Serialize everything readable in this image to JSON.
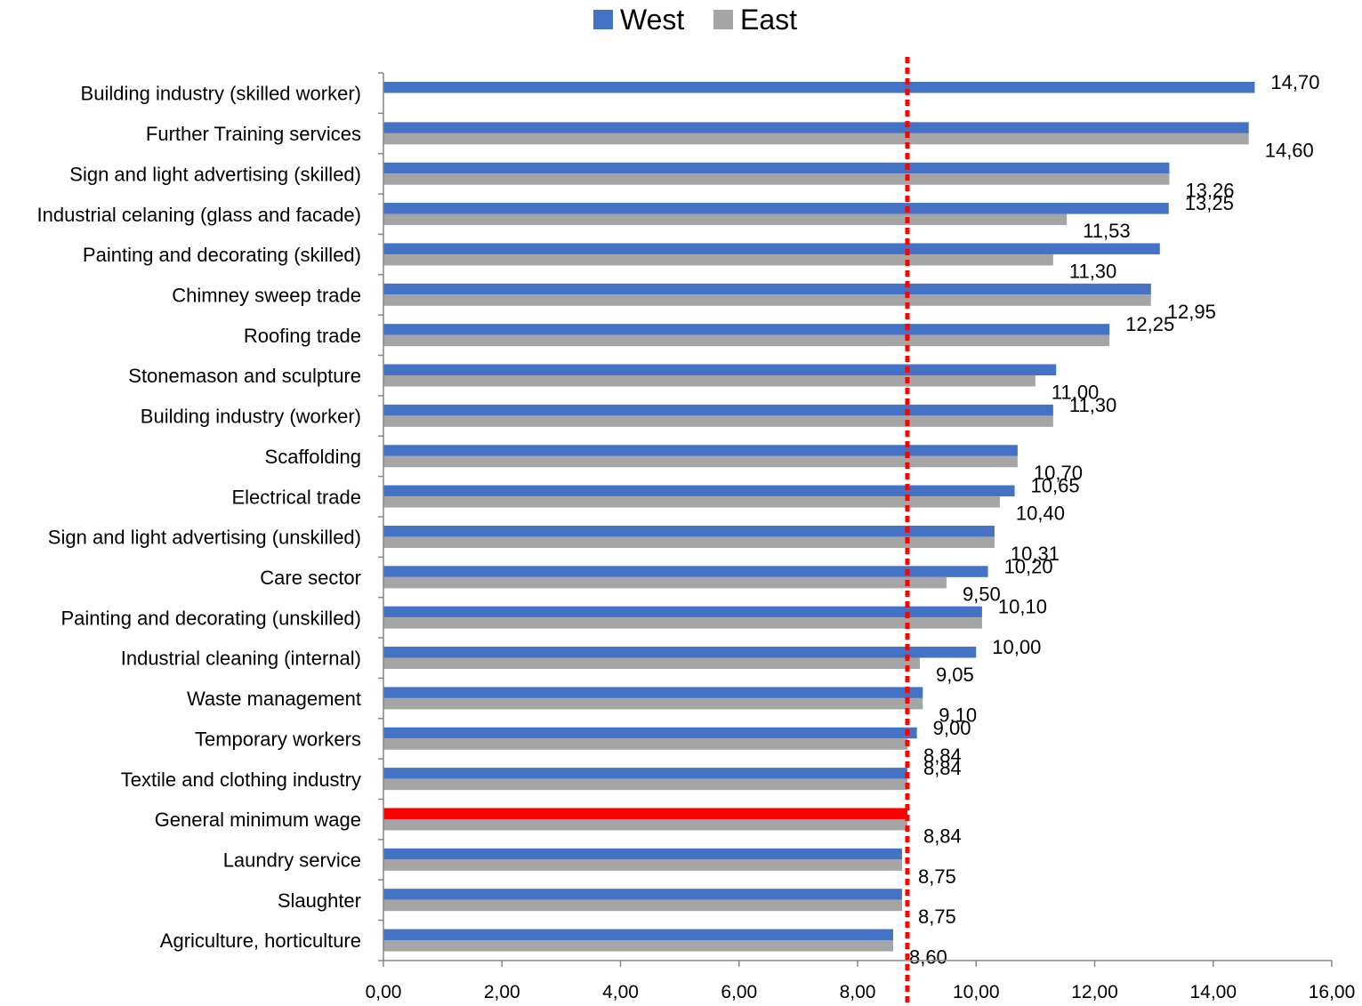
{
  "chart_data": {
    "type": "bar",
    "orientation": "horizontal",
    "categories": [
      "Building industry (skilled worker)",
      "Further Training services",
      "Sign and light advertising (skilled)",
      "Industrial celaning (glass and facade)",
      "Painting and decorating (skilled)",
      "Chimney sweep trade",
      "Roofing trade",
      "Stonemason and sculpture",
      "Building industry (worker)",
      "Scaffolding",
      "Electrical trade",
      "Sign and light advertising (unskilled)",
      "Care sector",
      "Painting and decorating (unskilled)",
      "Industrial cleaning (internal)",
      "Waste management",
      "Temporary workers",
      "Textile and clothing industry",
      "General minimum wage",
      "Laundry service",
      "Slaughter",
      "Agriculture, horticulture"
    ],
    "series": [
      {
        "name": "West",
        "color": "#4472c4",
        "values": [
          14.7,
          14.6,
          13.26,
          13.25,
          13.1,
          12.95,
          12.25,
          11.35,
          11.3,
          10.7,
          10.65,
          10.31,
          10.2,
          10.1,
          10.0,
          9.1,
          9.0,
          8.84,
          8.84,
          8.75,
          8.75,
          8.6
        ],
        "labels": [
          "14,70",
          "",
          "",
          "13,25",
          "",
          "",
          "12,25",
          "",
          "11,30",
          "",
          "10,65",
          "",
          "10,20",
          "10,10",
          "10,00",
          "",
          "9,00",
          "8,84",
          "",
          "",
          "",
          ""
        ]
      },
      {
        "name": "East",
        "color": "#a5a5a5",
        "values": [
          null,
          14.6,
          13.26,
          11.53,
          11.3,
          12.95,
          12.25,
          11.0,
          11.3,
          10.7,
          10.4,
          10.31,
          9.5,
          10.1,
          9.05,
          9.1,
          8.84,
          8.84,
          8.84,
          8.75,
          8.75,
          8.6
        ],
        "labels": [
          "",
          "14,60",
          "13,26",
          "11,53",
          "11,30",
          "12,95",
          "",
          "11,00",
          "",
          "10,70",
          "10,40",
          "10,31",
          "9,50",
          "",
          "9,05",
          "9,10",
          "8,84",
          "",
          "8,84",
          "8,75",
          "8,75",
          "8,60"
        ]
      }
    ],
    "highlight": {
      "category": "General minimum wage",
      "series": "West",
      "color": "#ff0000"
    },
    "reference_line": {
      "value": 8.84,
      "color": "#ff0000",
      "style": "dotted"
    },
    "xlim": [
      0,
      16
    ],
    "xticks": [
      "0,00",
      "2,00",
      "4,00",
      "6,00",
      "8,00",
      "10,00",
      "12,00",
      "14,00",
      "16,00"
    ],
    "legend": {
      "position": "top",
      "entries": [
        "West",
        "East"
      ]
    },
    "grid": false,
    "title": "",
    "xlabel": "",
    "ylabel": ""
  }
}
